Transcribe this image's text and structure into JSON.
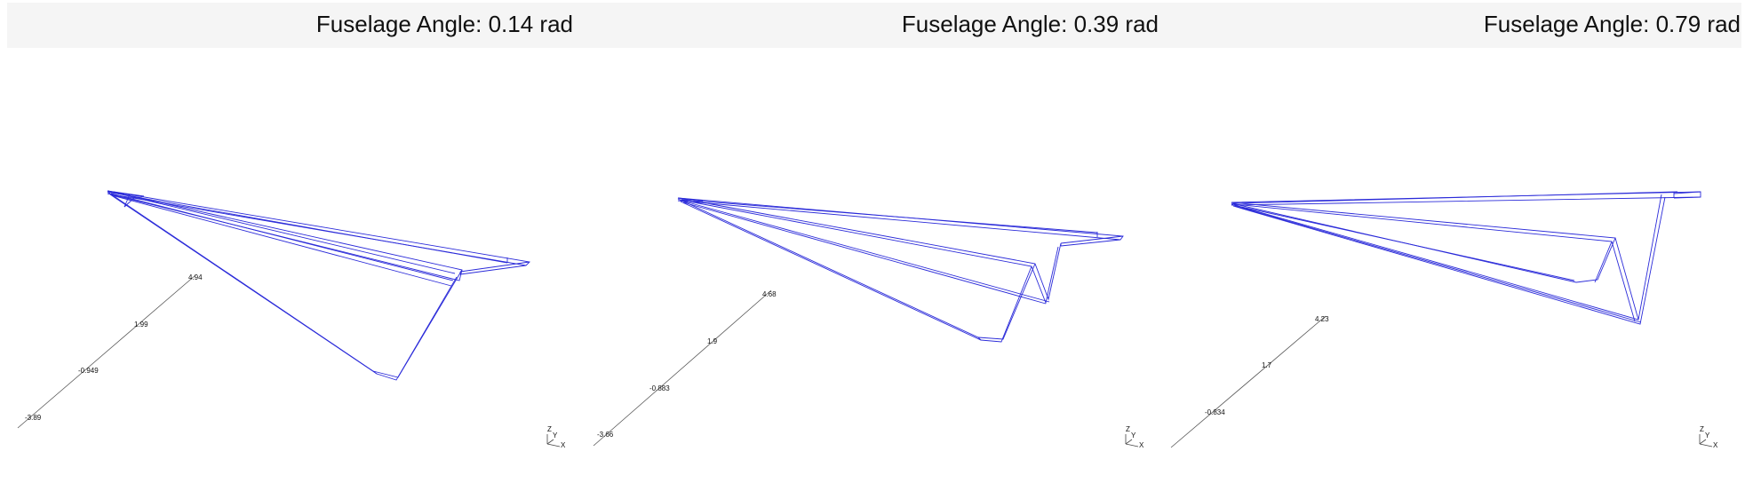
{
  "panels": [
    {
      "title": "Fuselage Angle: 0.14 rad",
      "ticks": [
        "4.94",
        "1.99",
        "-0.949",
        "-3.89"
      ]
    },
    {
      "title": "Fuselage Angle: 0.39 rad",
      "ticks": [
        "4.68",
        "1.9",
        "-0.883",
        "-3.66"
      ]
    },
    {
      "title": "Fuselage Angle: 0.79 rad",
      "ticks": [
        "4.23",
        "1.7",
        "-0.834"
      ]
    }
  ],
  "axes_triad": {
    "z": "Z",
    "y": "Y",
    "x": "X"
  },
  "colors": {
    "wire": "#2b2bd9",
    "header_bg": "#f5f5f5",
    "axis": "#444444"
  }
}
